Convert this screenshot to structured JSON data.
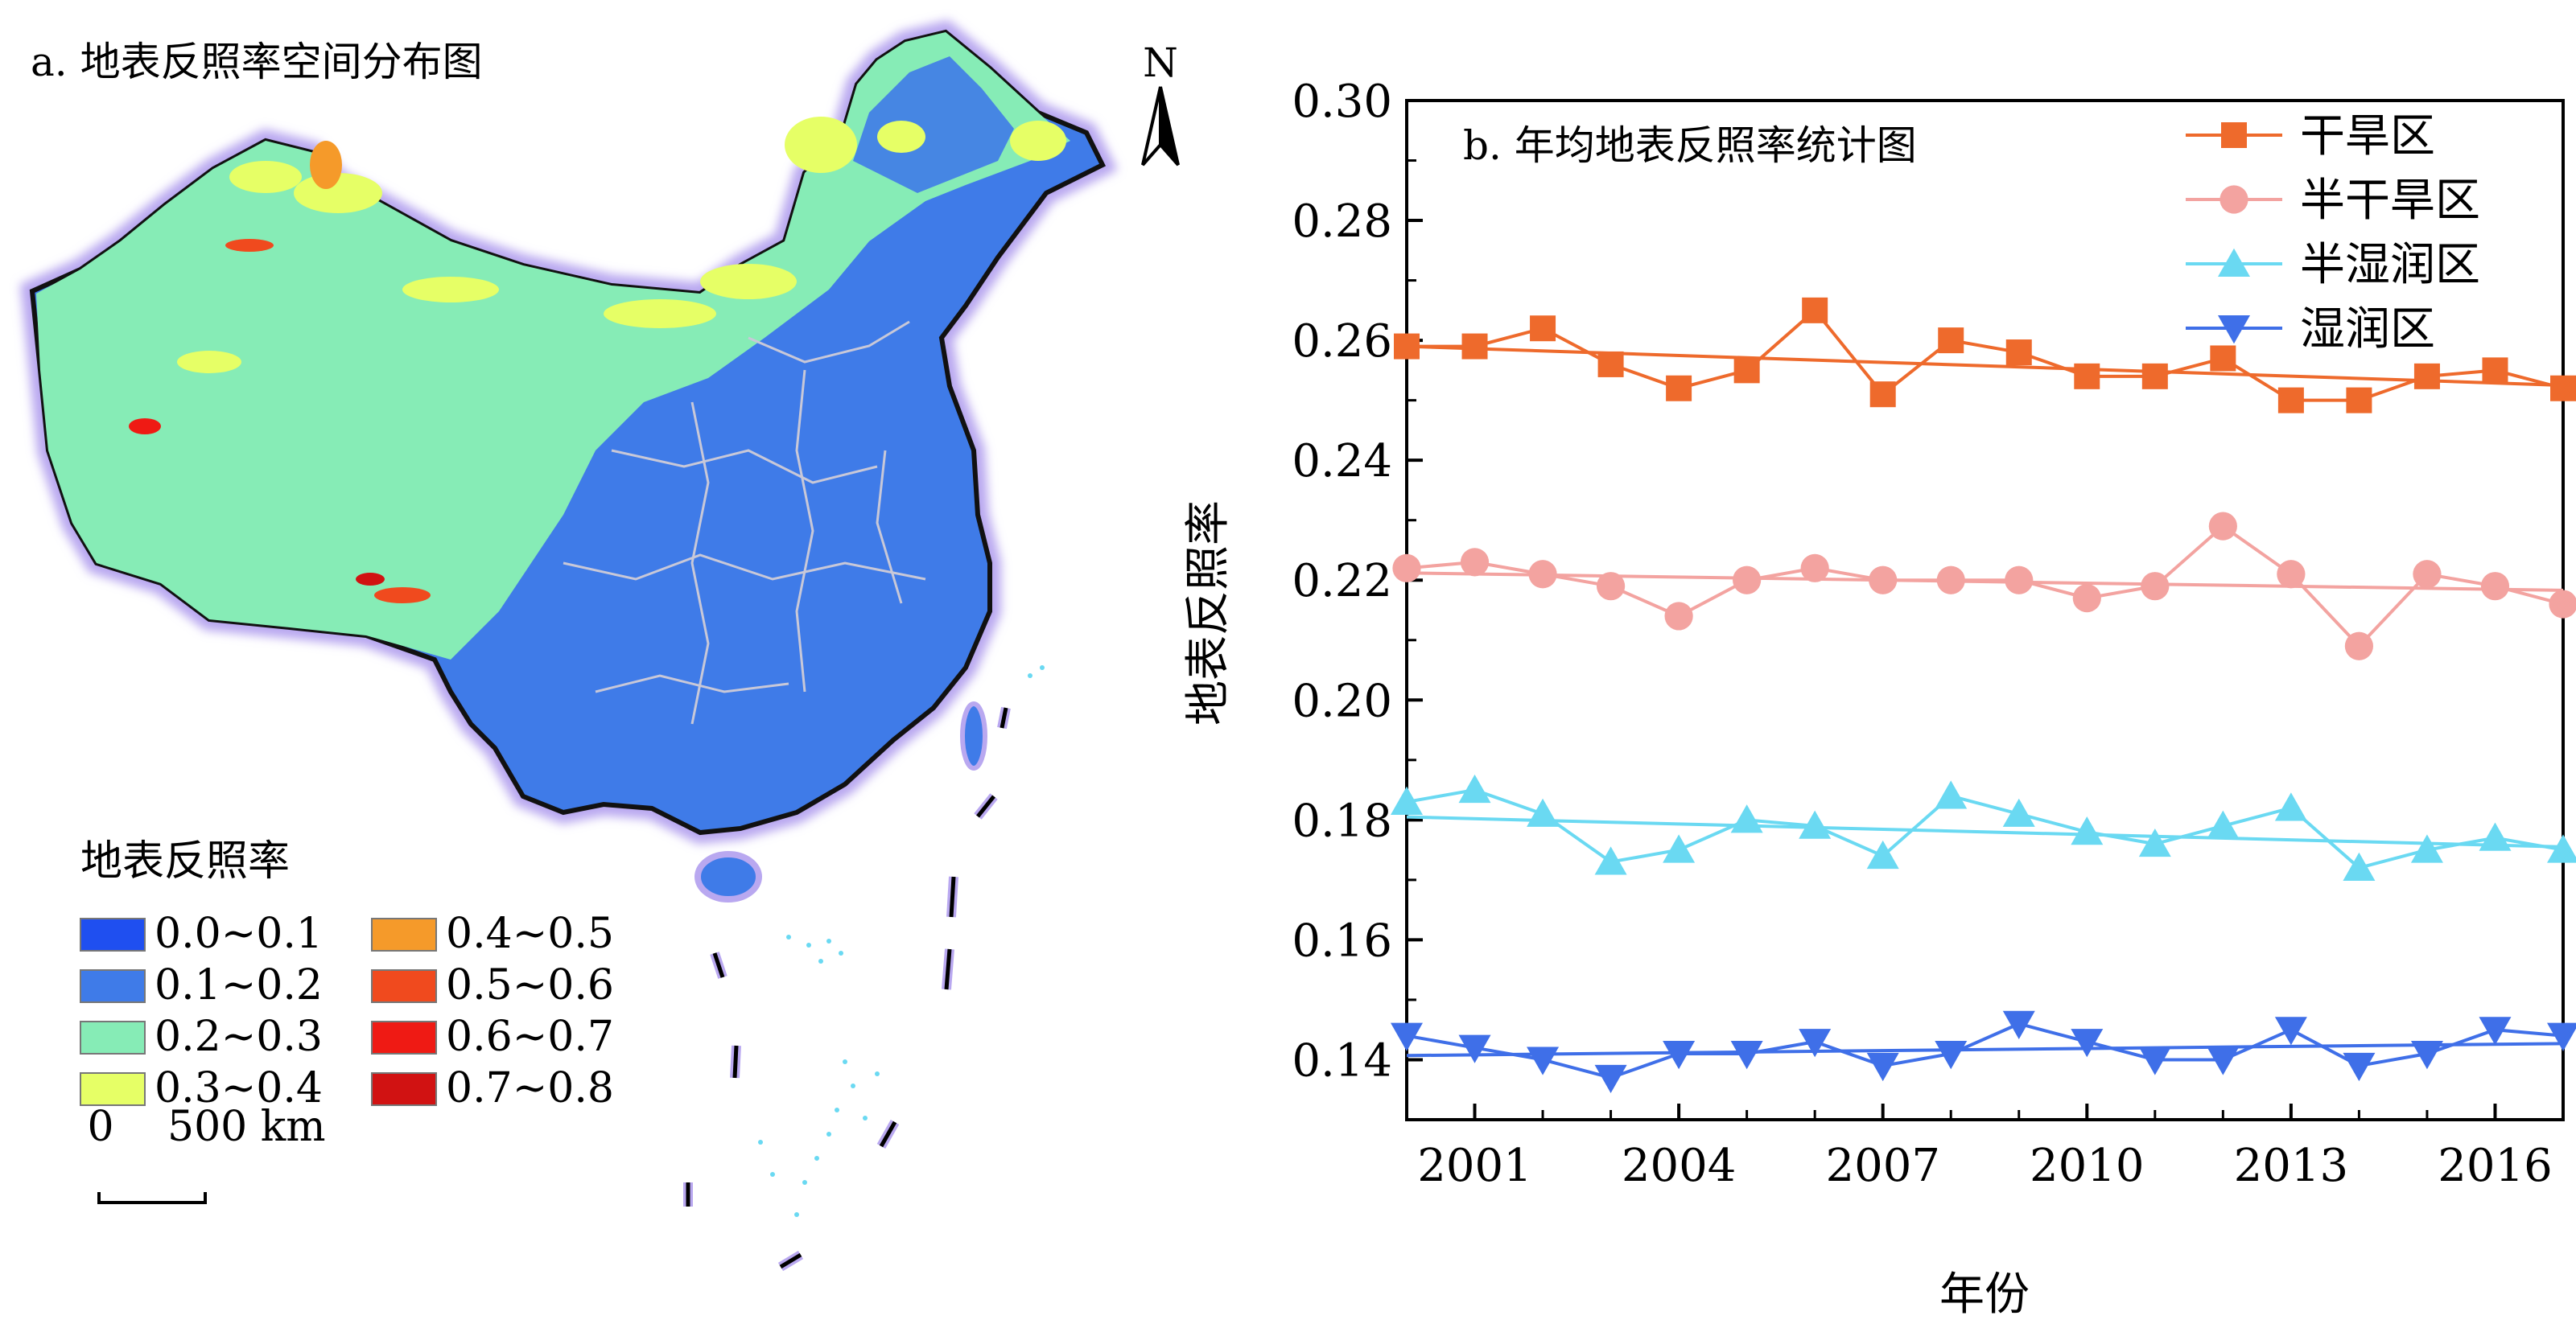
{
  "panel_a": {
    "title": "a. 地表反照率空间分布图",
    "north": "N",
    "legend_title": "地表反照率",
    "legend": [
      {
        "label": "0.0~0.1",
        "color": "#1f4ff0"
      },
      {
        "label": "0.1~0.2",
        "color": "#3f7be8"
      },
      {
        "label": "0.2~0.3",
        "color": "#86ecb6"
      },
      {
        "label": "0.3~0.4",
        "color": "#e6ff66"
      },
      {
        "label": "0.4~0.5",
        "color": "#f59a2a"
      },
      {
        "label": "0.5~0.6",
        "color": "#f04a1e"
      },
      {
        "label": "0.6~0.7",
        "color": "#ef1a14"
      },
      {
        "label": "0.7~0.8",
        "color": "#d11212"
      }
    ],
    "scale_zero": "0",
    "scale_label": "500 km"
  },
  "chart_data": {
    "type": "line",
    "title": "b. 年均地表反照率统计图",
    "xlabel": "年份",
    "ylabel": "地表反照率",
    "ylim": [
      0.13,
      0.3
    ],
    "xlim": [
      2000,
      2017
    ],
    "yticks": [
      "0.14",
      "0.16",
      "0.18",
      "0.20",
      "0.22",
      "0.24",
      "0.26",
      "0.28",
      "0.30"
    ],
    "xticks": [
      "2001",
      "2004",
      "2007",
      "2010",
      "2013",
      "2016"
    ],
    "x": [
      2000,
      2001,
      2002,
      2003,
      2004,
      2005,
      2006,
      2007,
      2008,
      2009,
      2010,
      2011,
      2012,
      2013,
      2014,
      2015,
      2016,
      2017
    ],
    "legend_position": "top-right",
    "grid": false,
    "series": [
      {
        "name": "干旱区",
        "color": "#ee6a2c",
        "marker": "square",
        "values": [
          0.259,
          0.259,
          0.262,
          0.256,
          0.252,
          0.255,
          0.265,
          0.251,
          0.26,
          0.258,
          0.254,
          0.254,
          0.257,
          0.25,
          0.25,
          0.254,
          0.255,
          0.252
        ],
        "trend": [
          0.259,
          0.2525
        ]
      },
      {
        "name": "半干旱区",
        "color": "#f3a3a0",
        "marker": "circle",
        "values": [
          0.222,
          0.223,
          0.221,
          0.219,
          0.214,
          0.22,
          0.222,
          0.22,
          0.22,
          0.22,
          0.217,
          0.219,
          0.229,
          0.221,
          0.209,
          0.221,
          0.219,
          0.216
        ],
        "trend": [
          0.2212,
          0.2183
        ]
      },
      {
        "name": "半湿润区",
        "color": "#6ad9f2",
        "marker": "triangle-up",
        "values": [
          0.183,
          0.185,
          0.181,
          0.173,
          0.175,
          0.18,
          0.179,
          0.174,
          0.184,
          0.181,
          0.178,
          0.176,
          0.179,
          0.182,
          0.172,
          0.175,
          0.177,
          0.175
        ],
        "trend": [
          0.1805,
          0.1755
        ]
      },
      {
        "name": "湿润区",
        "color": "#3f6fe8",
        "marker": "triangle-down",
        "values": [
          0.144,
          0.142,
          0.14,
          0.137,
          0.141,
          0.141,
          0.143,
          0.139,
          0.141,
          0.146,
          0.143,
          0.14,
          0.14,
          0.145,
          0.139,
          0.141,
          0.145,
          0.144
        ],
        "trend": [
          0.1407,
          0.1427
        ]
      }
    ]
  }
}
